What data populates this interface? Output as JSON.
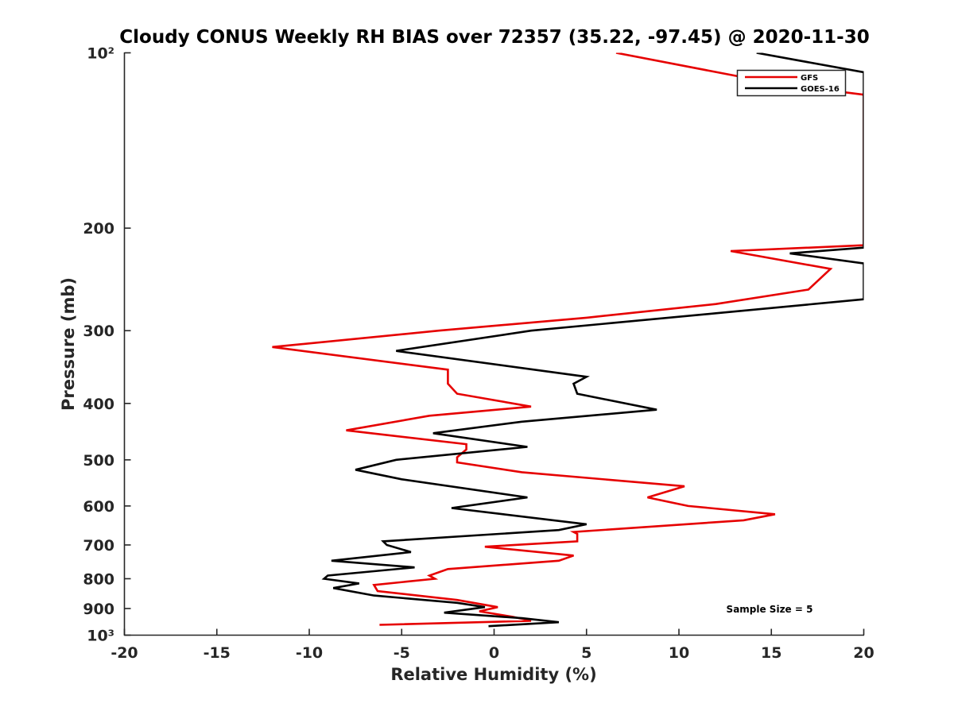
{
  "chart_data": {
    "type": "line",
    "title": "Cloudy CONUS Weekly RH BIAS over 72357 (35.22, -97.45) @ 2020-11-30",
    "xlabel": "Relative Humidity (%)",
    "ylabel": "Pressure (mb)",
    "xlim": [
      -20,
      20
    ],
    "ylim": [
      100,
      1000
    ],
    "y_scale": "log",
    "y_reversed": true,
    "x_ticks": [
      -20,
      -15,
      -10,
      -5,
      0,
      5,
      10,
      15,
      20
    ],
    "x_tick_labels": [
      "-20",
      "-15",
      "-10",
      "-5",
      "0",
      "5",
      "10",
      "15",
      "20"
    ],
    "y_ticks": [
      100,
      200,
      300,
      400,
      500,
      600,
      700,
      800,
      900,
      1000
    ],
    "y_tick_labels": [
      "10²",
      "200",
      "300",
      "400",
      "500",
      "600",
      "700",
      "800",
      "900",
      "10³"
    ],
    "grid": false,
    "legend_position": "top-right",
    "annotation": "Sample Size = 5",
    "series": [
      {
        "name": "GFS",
        "color": "#e60000",
        "points": [
          [
            6.6,
            100
          ],
          [
            15.3,
            113
          ],
          [
            20.0,
            118
          ],
          [
            20.0,
            214
          ],
          [
            12.8,
            219
          ],
          [
            18.2,
            235
          ],
          [
            17.0,
            255
          ],
          [
            12.0,
            270
          ],
          [
            5.0,
            285
          ],
          [
            -3.0,
            300
          ],
          [
            -12.0,
            320
          ],
          [
            -2.5,
            350
          ],
          [
            -2.5,
            370
          ],
          [
            -2.0,
            385
          ],
          [
            2.0,
            405
          ],
          [
            -3.5,
            420
          ],
          [
            -8.0,
            445
          ],
          [
            -1.5,
            470
          ],
          [
            -1.5,
            480
          ],
          [
            -2.0,
            495
          ],
          [
            -2.0,
            505
          ],
          [
            1.5,
            525
          ],
          [
            10.3,
            555
          ],
          [
            8.3,
            580
          ],
          [
            10.5,
            600
          ],
          [
            15.2,
            620
          ],
          [
            13.5,
            635
          ],
          [
            4.3,
            665
          ],
          [
            4.5,
            670
          ],
          [
            4.5,
            690
          ],
          [
            -0.5,
            705
          ],
          [
            4.3,
            730
          ],
          [
            3.5,
            745
          ],
          [
            -2.5,
            770
          ],
          [
            -3.5,
            790
          ],
          [
            -3.2,
            800
          ],
          [
            -6.5,
            820
          ],
          [
            -6.3,
            840
          ],
          [
            -2.0,
            870
          ],
          [
            0.2,
            895
          ],
          [
            -0.8,
            910
          ],
          [
            1.0,
            930
          ],
          [
            2.0,
            945
          ],
          [
            -6.2,
            960
          ]
        ]
      },
      {
        "name": "GOES-16",
        "color": "#000000",
        "points": [
          [
            14.2,
            100
          ],
          [
            20.0,
            108
          ],
          [
            20.0,
            216
          ],
          [
            16.0,
            221
          ],
          [
            20.0,
            230
          ],
          [
            20.0,
            265
          ],
          [
            12.0,
            280
          ],
          [
            2.0,
            300
          ],
          [
            -5.3,
            325
          ],
          [
            5.0,
            360
          ],
          [
            4.3,
            370
          ],
          [
            4.5,
            385
          ],
          [
            8.8,
            410
          ],
          [
            1.5,
            430
          ],
          [
            -3.3,
            450
          ],
          [
            1.8,
            475
          ],
          [
            -5.3,
            500
          ],
          [
            -7.5,
            520
          ],
          [
            -5.0,
            540
          ],
          [
            1.8,
            580
          ],
          [
            -2.3,
            605
          ],
          [
            0.5,
            620
          ],
          [
            5.0,
            645
          ],
          [
            3.5,
            660
          ],
          [
            -6.0,
            690
          ],
          [
            -5.8,
            700
          ],
          [
            -4.5,
            720
          ],
          [
            -8.8,
            745
          ],
          [
            -4.3,
            765
          ],
          [
            -9.0,
            790
          ],
          [
            -9.2,
            800
          ],
          [
            -7.3,
            815
          ],
          [
            -8.7,
            830
          ],
          [
            -6.5,
            855
          ],
          [
            -2.0,
            880
          ],
          [
            -0.5,
            895
          ],
          [
            -2.7,
            915
          ],
          [
            1.5,
            935
          ],
          [
            3.5,
            950
          ],
          [
            -0.3,
            965
          ]
        ]
      }
    ]
  }
}
